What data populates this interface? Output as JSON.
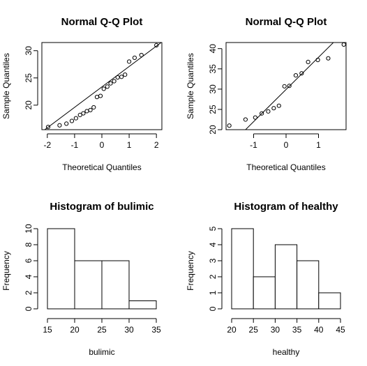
{
  "chart_data": [
    {
      "type": "scatter",
      "title": "Normal Q-Q Plot",
      "xlabel": "Theoretical Quantiles",
      "ylabel": "Sample Quantiles",
      "xlim": [
        -2.2,
        2.2
      ],
      "ylim": [
        15.5,
        31.5
      ],
      "xticks": [
        -2,
        -1,
        0,
        1,
        2
      ],
      "yticks": [
        20,
        25,
        30
      ],
      "points": [
        [
          -1.97,
          16.0
        ],
        [
          -1.55,
          16.3
        ],
        [
          -1.3,
          16.6
        ],
        [
          -1.1,
          17.1
        ],
        [
          -0.95,
          17.6
        ],
        [
          -0.8,
          18.2
        ],
        [
          -0.68,
          18.5
        ],
        [
          -0.55,
          18.9
        ],
        [
          -0.42,
          19.1
        ],
        [
          -0.3,
          19.6
        ],
        [
          -0.18,
          21.5
        ],
        [
          -0.05,
          21.7
        ],
        [
          0.07,
          23.0
        ],
        [
          0.2,
          23.4
        ],
        [
          0.32,
          24.0
        ],
        [
          0.45,
          24.4
        ],
        [
          0.58,
          25.1
        ],
        [
          0.72,
          25.2
        ],
        [
          0.85,
          25.6
        ],
        [
          1.0,
          28.0
        ],
        [
          1.2,
          28.7
        ],
        [
          1.45,
          29.2
        ],
        [
          2.0,
          31.0
        ]
      ],
      "reference_line": [
        [
          -2.2,
          15.1
        ],
        [
          2.2,
          31.6
        ]
      ]
    },
    {
      "type": "scatter",
      "title": "Normal Q-Q Plot",
      "xlabel": "Theoretical Quantiles",
      "ylabel": "Sample Quantiles",
      "xlim": [
        -1.85,
        1.85
      ],
      "ylim": [
        20,
        41.5
      ],
      "xticks": [
        -1,
        0,
        1
      ],
      "yticks": [
        20,
        25,
        30,
        35,
        40
      ],
      "points": [
        [
          -1.75,
          21.0
        ],
        [
          -1.25,
          22.5
        ],
        [
          -0.95,
          23.0
        ],
        [
          -0.75,
          24.0
        ],
        [
          -0.55,
          24.5
        ],
        [
          -0.38,
          25.3
        ],
        [
          -0.22,
          25.9
        ],
        [
          -0.05,
          30.7
        ],
        [
          0.1,
          30.8
        ],
        [
          0.3,
          33.4
        ],
        [
          0.48,
          33.9
        ],
        [
          0.68,
          36.7
        ],
        [
          0.98,
          37.2
        ],
        [
          1.3,
          37.6
        ],
        [
          1.78,
          41.0
        ]
      ],
      "reference_line": [
        [
          -1.3,
          19.6
        ],
        [
          1.9,
          45.0
        ]
      ]
    },
    {
      "type": "bar",
      "title": "Histogram of bulimic",
      "xlabel": "bulimic",
      "ylabel": "Frequency",
      "xlim": [
        15,
        35
      ],
      "ylim": [
        0,
        10
      ],
      "xticks": [
        15,
        20,
        25,
        30,
        35
      ],
      "yticks": [
        0,
        2,
        4,
        6,
        8,
        10
      ],
      "bins": [
        [
          15,
          20
        ],
        [
          20,
          25
        ],
        [
          25,
          30
        ],
        [
          30,
          35
        ]
      ],
      "values": [
        10,
        6,
        6,
        1
      ]
    },
    {
      "type": "bar",
      "title": "Histogram of healthy",
      "xlabel": "healthy",
      "ylabel": "Frequency",
      "xlim": [
        20,
        45
      ],
      "ylim": [
        0,
        5
      ],
      "xticks": [
        20,
        25,
        30,
        35,
        40,
        45
      ],
      "yticks": [
        0,
        1,
        2,
        3,
        4,
        5
      ],
      "bins": [
        [
          20,
          25
        ],
        [
          25,
          30
        ],
        [
          30,
          35
        ],
        [
          35,
          40
        ],
        [
          40,
          45
        ]
      ],
      "values": [
        5,
        2,
        4,
        3,
        1
      ]
    }
  ]
}
